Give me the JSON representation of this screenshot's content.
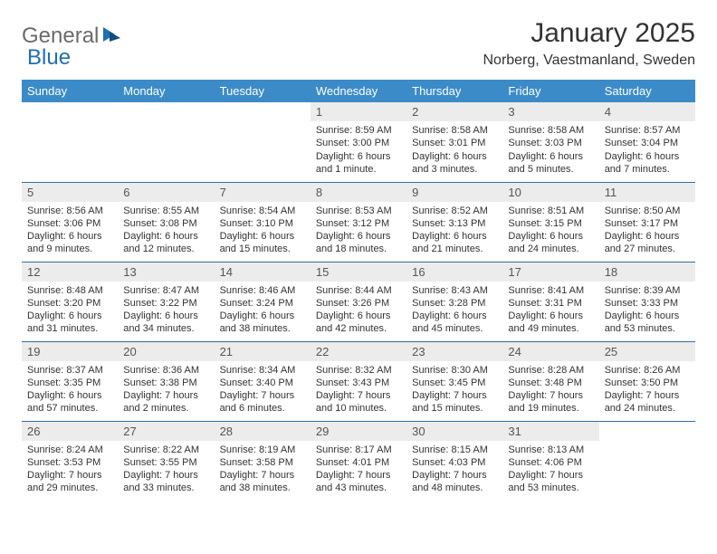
{
  "logo": {
    "general": "General",
    "blue": "Blue"
  },
  "title": "January 2025",
  "location": "Norberg, Vaestmanland, Sweden",
  "colors": {
    "header_bg": "#3b8bc9",
    "header_text": "#ffffff",
    "daynum_bg": "#ececec",
    "row_border": "#2f6ea8",
    "logo_gray": "#6b6b6b",
    "logo_blue": "#1f6fb2"
  },
  "weekdays": [
    "Sunday",
    "Monday",
    "Tuesday",
    "Wednesday",
    "Thursday",
    "Friday",
    "Saturday"
  ],
  "weeks": [
    [
      null,
      null,
      null,
      {
        "n": "1",
        "sr": "Sunrise: 8:59 AM",
        "ss": "Sunset: 3:00 PM",
        "dl": "Daylight: 6 hours and 1 minute."
      },
      {
        "n": "2",
        "sr": "Sunrise: 8:58 AM",
        "ss": "Sunset: 3:01 PM",
        "dl": "Daylight: 6 hours and 3 minutes."
      },
      {
        "n": "3",
        "sr": "Sunrise: 8:58 AM",
        "ss": "Sunset: 3:03 PM",
        "dl": "Daylight: 6 hours and 5 minutes."
      },
      {
        "n": "4",
        "sr": "Sunrise: 8:57 AM",
        "ss": "Sunset: 3:04 PM",
        "dl": "Daylight: 6 hours and 7 minutes."
      }
    ],
    [
      {
        "n": "5",
        "sr": "Sunrise: 8:56 AM",
        "ss": "Sunset: 3:06 PM",
        "dl": "Daylight: 6 hours and 9 minutes."
      },
      {
        "n": "6",
        "sr": "Sunrise: 8:55 AM",
        "ss": "Sunset: 3:08 PM",
        "dl": "Daylight: 6 hours and 12 minutes."
      },
      {
        "n": "7",
        "sr": "Sunrise: 8:54 AM",
        "ss": "Sunset: 3:10 PM",
        "dl": "Daylight: 6 hours and 15 minutes."
      },
      {
        "n": "8",
        "sr": "Sunrise: 8:53 AM",
        "ss": "Sunset: 3:12 PM",
        "dl": "Daylight: 6 hours and 18 minutes."
      },
      {
        "n": "9",
        "sr": "Sunrise: 8:52 AM",
        "ss": "Sunset: 3:13 PM",
        "dl": "Daylight: 6 hours and 21 minutes."
      },
      {
        "n": "10",
        "sr": "Sunrise: 8:51 AM",
        "ss": "Sunset: 3:15 PM",
        "dl": "Daylight: 6 hours and 24 minutes."
      },
      {
        "n": "11",
        "sr": "Sunrise: 8:50 AM",
        "ss": "Sunset: 3:17 PM",
        "dl": "Daylight: 6 hours and 27 minutes."
      }
    ],
    [
      {
        "n": "12",
        "sr": "Sunrise: 8:48 AM",
        "ss": "Sunset: 3:20 PM",
        "dl": "Daylight: 6 hours and 31 minutes."
      },
      {
        "n": "13",
        "sr": "Sunrise: 8:47 AM",
        "ss": "Sunset: 3:22 PM",
        "dl": "Daylight: 6 hours and 34 minutes."
      },
      {
        "n": "14",
        "sr": "Sunrise: 8:46 AM",
        "ss": "Sunset: 3:24 PM",
        "dl": "Daylight: 6 hours and 38 minutes."
      },
      {
        "n": "15",
        "sr": "Sunrise: 8:44 AM",
        "ss": "Sunset: 3:26 PM",
        "dl": "Daylight: 6 hours and 42 minutes."
      },
      {
        "n": "16",
        "sr": "Sunrise: 8:43 AM",
        "ss": "Sunset: 3:28 PM",
        "dl": "Daylight: 6 hours and 45 minutes."
      },
      {
        "n": "17",
        "sr": "Sunrise: 8:41 AM",
        "ss": "Sunset: 3:31 PM",
        "dl": "Daylight: 6 hours and 49 minutes."
      },
      {
        "n": "18",
        "sr": "Sunrise: 8:39 AM",
        "ss": "Sunset: 3:33 PM",
        "dl": "Daylight: 6 hours and 53 minutes."
      }
    ],
    [
      {
        "n": "19",
        "sr": "Sunrise: 8:37 AM",
        "ss": "Sunset: 3:35 PM",
        "dl": "Daylight: 6 hours and 57 minutes."
      },
      {
        "n": "20",
        "sr": "Sunrise: 8:36 AM",
        "ss": "Sunset: 3:38 PM",
        "dl": "Daylight: 7 hours and 2 minutes."
      },
      {
        "n": "21",
        "sr": "Sunrise: 8:34 AM",
        "ss": "Sunset: 3:40 PM",
        "dl": "Daylight: 7 hours and 6 minutes."
      },
      {
        "n": "22",
        "sr": "Sunrise: 8:32 AM",
        "ss": "Sunset: 3:43 PM",
        "dl": "Daylight: 7 hours and 10 minutes."
      },
      {
        "n": "23",
        "sr": "Sunrise: 8:30 AM",
        "ss": "Sunset: 3:45 PM",
        "dl": "Daylight: 7 hours and 15 minutes."
      },
      {
        "n": "24",
        "sr": "Sunrise: 8:28 AM",
        "ss": "Sunset: 3:48 PM",
        "dl": "Daylight: 7 hours and 19 minutes."
      },
      {
        "n": "25",
        "sr": "Sunrise: 8:26 AM",
        "ss": "Sunset: 3:50 PM",
        "dl": "Daylight: 7 hours and 24 minutes."
      }
    ],
    [
      {
        "n": "26",
        "sr": "Sunrise: 8:24 AM",
        "ss": "Sunset: 3:53 PM",
        "dl": "Daylight: 7 hours and 29 minutes."
      },
      {
        "n": "27",
        "sr": "Sunrise: 8:22 AM",
        "ss": "Sunset: 3:55 PM",
        "dl": "Daylight: 7 hours and 33 minutes."
      },
      {
        "n": "28",
        "sr": "Sunrise: 8:19 AM",
        "ss": "Sunset: 3:58 PM",
        "dl": "Daylight: 7 hours and 38 minutes."
      },
      {
        "n": "29",
        "sr": "Sunrise: 8:17 AM",
        "ss": "Sunset: 4:01 PM",
        "dl": "Daylight: 7 hours and 43 minutes."
      },
      {
        "n": "30",
        "sr": "Sunrise: 8:15 AM",
        "ss": "Sunset: 4:03 PM",
        "dl": "Daylight: 7 hours and 48 minutes."
      },
      {
        "n": "31",
        "sr": "Sunrise: 8:13 AM",
        "ss": "Sunset: 4:06 PM",
        "dl": "Daylight: 7 hours and 53 minutes."
      },
      null
    ]
  ]
}
